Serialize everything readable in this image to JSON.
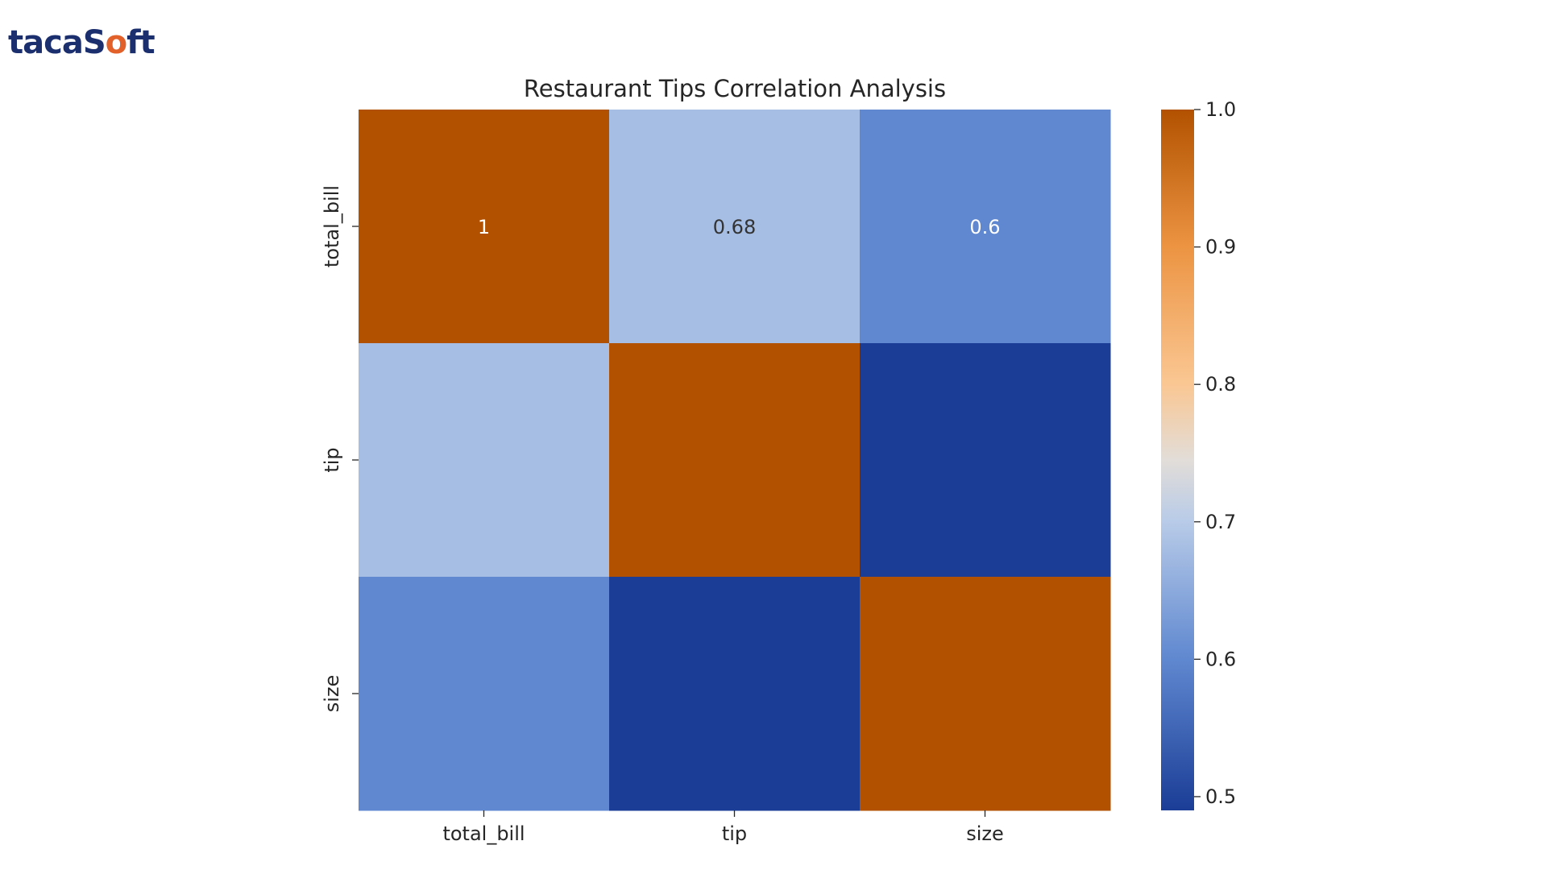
{
  "brand": {
    "logo_text": "tacaSoft",
    "logo_color": "#1b2e6e",
    "logo_accent": "#e2612b"
  },
  "chart_data": {
    "type": "heatmap",
    "title": "Restaurant Tips Correlation Analysis",
    "x_labels": [
      "total_bill",
      "tip",
      "size"
    ],
    "y_labels": [
      "total_bill",
      "tip",
      "size"
    ],
    "values": [
      [
        1.0,
        0.68,
        0.6
      ],
      [
        0.68,
        1.0,
        0.49
      ],
      [
        0.6,
        0.49,
        1.0
      ]
    ],
    "annotations": [
      [
        "1",
        "0.68",
        "0.6"
      ],
      [
        "",
        "",
        ""
      ],
      [
        "",
        "",
        ""
      ]
    ],
    "colorbar": {
      "min": 0.49,
      "max": 1.0,
      "ticks": [
        0.5,
        0.6,
        0.7,
        0.8,
        0.9,
        1.0
      ],
      "tick_labels": [
        "0.5",
        "0.6",
        "0.7",
        "0.8",
        "0.9",
        "1.0"
      ],
      "colormap": "blue-to-orange diverging",
      "stops": [
        {
          "value": 0.49,
          "color": "#1b3d96"
        },
        {
          "value": 0.6,
          "color": "#5f88d0"
        },
        {
          "value": 0.7,
          "color": "#b8cbe8"
        },
        {
          "value": 0.745,
          "color": "#e2ddd8"
        },
        {
          "value": 0.8,
          "color": "#fac793"
        },
        {
          "value": 0.9,
          "color": "#ec9442"
        },
        {
          "value": 1.0,
          "color": "#b25200"
        }
      ]
    },
    "legend": "colorbar-right",
    "grid": false
  }
}
